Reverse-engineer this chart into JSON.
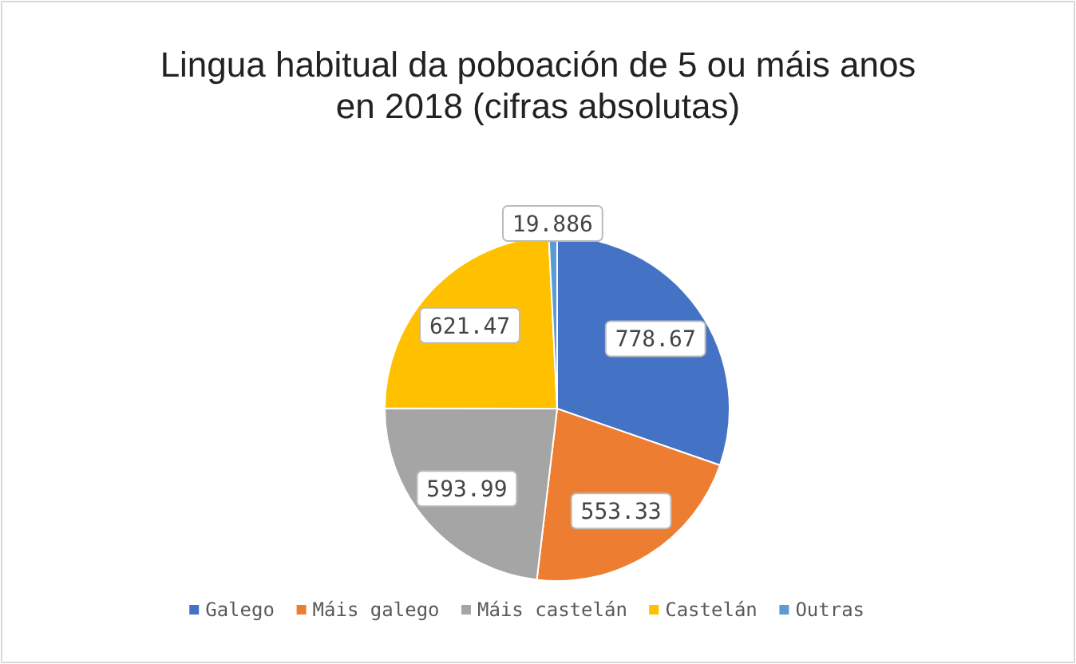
{
  "chart_data": {
    "type": "pie",
    "title": "Lingua habitual da poboación de 5 ou máis anos en 2018 (cifras absolutas)",
    "categories": [
      "Galego",
      "Máis galego",
      "Máis castelán",
      "Castelán",
      "Outras"
    ],
    "values": [
      778.67,
      553.33,
      593.99,
      621.47,
      19.886
    ],
    "colors": [
      "#4472c4",
      "#ed7d31",
      "#a5a5a5",
      "#ffc000",
      "#5b9bd5"
    ],
    "data_labels": true,
    "legend": "bottom"
  }
}
